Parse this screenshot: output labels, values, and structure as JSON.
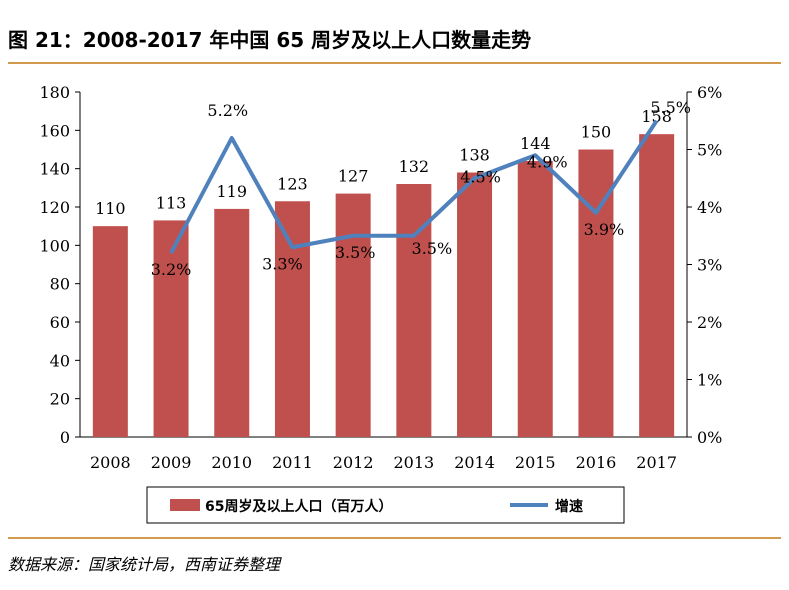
{
  "title": "图 21：2008-2017 年中国 65 周岁及以上人口数量走势",
  "source": "数据来源：国家统计局，西南证券整理",
  "chart_data": {
    "type": "bar",
    "categories": [
      "2008",
      "2009",
      "2010",
      "2011",
      "2012",
      "2013",
      "2014",
      "2015",
      "2016",
      "2017"
    ],
    "series": [
      {
        "name": "65周岁及以上人口（百万人）",
        "type": "bar",
        "axis": "left",
        "color": "#C0504D",
        "values": [
          110,
          113,
          119,
          123,
          127,
          132,
          138,
          144,
          150,
          158
        ],
        "labels": [
          "110",
          "113",
          "119",
          "123",
          "127",
          "132",
          "138",
          "144",
          "150",
          "158"
        ]
      },
      {
        "name": "增速",
        "type": "line",
        "axis": "right",
        "color": "#4F81BD",
        "values": [
          null,
          3.2,
          5.2,
          3.3,
          3.5,
          3.5,
          4.5,
          4.9,
          3.9,
          5.5
        ],
        "labels": [
          "",
          "3.2%",
          "5.2%",
          "3.3%",
          "3.5%",
          "3.5%",
          "4.5%",
          "4.9%",
          "3.9%",
          "5.5%"
        ]
      }
    ],
    "y_left": {
      "min": 0,
      "max": 180,
      "ticks": [
        "0",
        "20",
        "40",
        "60",
        "80",
        "100",
        "120",
        "140",
        "160",
        "180"
      ]
    },
    "y_right": {
      "min": 0,
      "max": 6,
      "ticks": [
        "0%",
        "1%",
        "2%",
        "3%",
        "4%",
        "5%",
        "6%"
      ]
    },
    "legend": {
      "position": "bottom",
      "items": [
        "65周岁及以上人口（百万人）",
        "增速"
      ]
    },
    "grid": false
  }
}
